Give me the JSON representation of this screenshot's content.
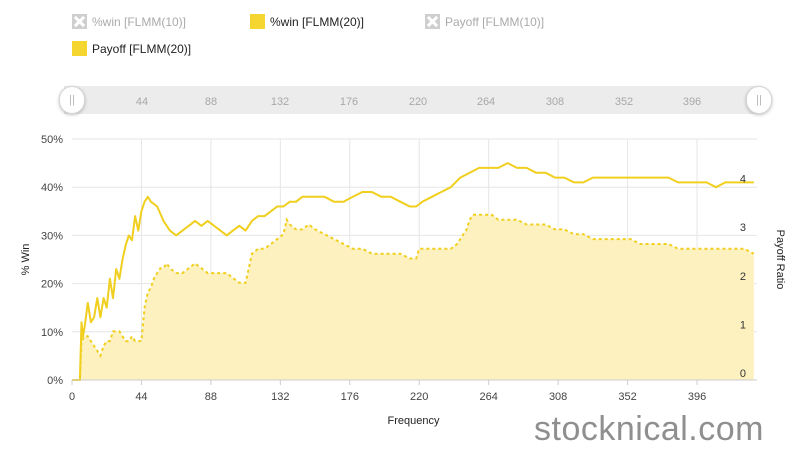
{
  "legend": [
    {
      "label": "%win [FLMM(10)]",
      "state": "off",
      "icon": "x-box-icon"
    },
    {
      "label": "%win [FLMM(20)]",
      "state": "on",
      "icon": "yellow-square-icon"
    },
    {
      "label": "Payoff [FLMM(10)]",
      "state": "off",
      "icon": "x-box-icon"
    },
    {
      "label": "Payoff [FLMM(20)]",
      "state": "on",
      "icon": "yellow-square-icon"
    }
  ],
  "navigator": {
    "ticks": [
      "44",
      "88",
      "132",
      "176",
      "220",
      "264",
      "308",
      "352",
      "396"
    ],
    "handle_left": "||",
    "handle_right": "||"
  },
  "watermark": "stocknical.com",
  "chart_data": {
    "type": "line",
    "xlabel": "Frequency",
    "ylabel_left": "% Win",
    "ylabel_right": "Payoff Ratio",
    "xlim": [
      0,
      434
    ],
    "x_ticks": [
      0,
      44,
      88,
      132,
      176,
      220,
      264,
      308,
      352,
      396
    ],
    "y_left_ticks": [
      "0%",
      "10%",
      "20%",
      "30%",
      "40%",
      "50%"
    ],
    "y_left_range": [
      0,
      50
    ],
    "y_right_ticks": [
      "0",
      "1",
      "2",
      "3",
      "4"
    ],
    "y_right_range": [
      0,
      4.96
    ],
    "grid": true,
    "colors": {
      "line": "#f0cf1f",
      "area_fill": "#fdf1bf",
      "area_line": "#f0cf1f",
      "grid": "#e6e6e6",
      "axis": "#cccccc"
    },
    "series": [
      {
        "name": "%win [FLMM(20)]",
        "kind": "line",
        "axis": "left",
        "points": [
          [
            0,
            0
          ],
          [
            5,
            0
          ],
          [
            6,
            12
          ],
          [
            7,
            9
          ],
          [
            8,
            11
          ],
          [
            10,
            16
          ],
          [
            12,
            12
          ],
          [
            14,
            13
          ],
          [
            16,
            17
          ],
          [
            18,
            13
          ],
          [
            20,
            17
          ],
          [
            22,
            15
          ],
          [
            24,
            21
          ],
          [
            26,
            17
          ],
          [
            28,
            23
          ],
          [
            30,
            21
          ],
          [
            32,
            25
          ],
          [
            34,
            28
          ],
          [
            36,
            30
          ],
          [
            38,
            29
          ],
          [
            40,
            34
          ],
          [
            42,
            31
          ],
          [
            44,
            35
          ],
          [
            46,
            37
          ],
          [
            48,
            38
          ],
          [
            50,
            37
          ],
          [
            54,
            36
          ],
          [
            58,
            33
          ],
          [
            62,
            31
          ],
          [
            66,
            30
          ],
          [
            70,
            31
          ],
          [
            74,
            32
          ],
          [
            78,
            33
          ],
          [
            82,
            32
          ],
          [
            86,
            33
          ],
          [
            90,
            32
          ],
          [
            94,
            31
          ],
          [
            98,
            30
          ],
          [
            102,
            31
          ],
          [
            106,
            32
          ],
          [
            110,
            31
          ],
          [
            114,
            33
          ],
          [
            118,
            34
          ],
          [
            122,
            34
          ],
          [
            126,
            35
          ],
          [
            130,
            36
          ],
          [
            134,
            36
          ],
          [
            138,
            37
          ],
          [
            142,
            37
          ],
          [
            146,
            38
          ],
          [
            150,
            38
          ],
          [
            154,
            38
          ],
          [
            160,
            38
          ],
          [
            166,
            37
          ],
          [
            172,
            37
          ],
          [
            178,
            38
          ],
          [
            184,
            39
          ],
          [
            190,
            39
          ],
          [
            196,
            38
          ],
          [
            202,
            38
          ],
          [
            208,
            37
          ],
          [
            214,
            36
          ],
          [
            218,
            36
          ],
          [
            222,
            37
          ],
          [
            228,
            38
          ],
          [
            234,
            39
          ],
          [
            240,
            40
          ],
          [
            246,
            42
          ],
          [
            252,
            43
          ],
          [
            258,
            44
          ],
          [
            264,
            44
          ],
          [
            270,
            44
          ],
          [
            276,
            45
          ],
          [
            282,
            44
          ],
          [
            288,
            44
          ],
          [
            294,
            43
          ],
          [
            300,
            43
          ],
          [
            306,
            42
          ],
          [
            312,
            42
          ],
          [
            318,
            41
          ],
          [
            324,
            41
          ],
          [
            330,
            42
          ],
          [
            336,
            42
          ],
          [
            342,
            42
          ],
          [
            348,
            42
          ],
          [
            354,
            42
          ],
          [
            360,
            42
          ],
          [
            366,
            42
          ],
          [
            372,
            42
          ],
          [
            378,
            42
          ],
          [
            384,
            41
          ],
          [
            390,
            41
          ],
          [
            396,
            41
          ],
          [
            402,
            41
          ],
          [
            408,
            40
          ],
          [
            414,
            41
          ],
          [
            420,
            41
          ],
          [
            426,
            41
          ],
          [
            432,
            41
          ]
        ]
      },
      {
        "name": "Payoff [FLMM(20)]",
        "kind": "area",
        "axis": "right",
        "points": [
          [
            0,
            0
          ],
          [
            5,
            0
          ],
          [
            6,
            0.8
          ],
          [
            8,
            0.9
          ],
          [
            10,
            0.9
          ],
          [
            12,
            0.8
          ],
          [
            14,
            0.7
          ],
          [
            16,
            0.6
          ],
          [
            18,
            0.5
          ],
          [
            20,
            0.7
          ],
          [
            22,
            0.8
          ],
          [
            24,
            0.8
          ],
          [
            26,
            1.0
          ],
          [
            28,
            1.0
          ],
          [
            30,
            1.0
          ],
          [
            32,
            0.9
          ],
          [
            34,
            0.8
          ],
          [
            36,
            0.8
          ],
          [
            38,
            0.9
          ],
          [
            40,
            0.8
          ],
          [
            42,
            0.8
          ],
          [
            44,
            0.8
          ],
          [
            46,
            1.5
          ],
          [
            48,
            1.8
          ],
          [
            50,
            1.9
          ],
          [
            52,
            2.1
          ],
          [
            54,
            2.2
          ],
          [
            56,
            2.3
          ],
          [
            58,
            2.3
          ],
          [
            60,
            2.4
          ],
          [
            62,
            2.3
          ],
          [
            66,
            2.2
          ],
          [
            70,
            2.2
          ],
          [
            74,
            2.3
          ],
          [
            78,
            2.4
          ],
          [
            82,
            2.3
          ],
          [
            86,
            2.2
          ],
          [
            90,
            2.2
          ],
          [
            94,
            2.2
          ],
          [
            98,
            2.2
          ],
          [
            102,
            2.1
          ],
          [
            106,
            2.0
          ],
          [
            110,
            2.0
          ],
          [
            112,
            2.3
          ],
          [
            114,
            2.6
          ],
          [
            118,
            2.7
          ],
          [
            122,
            2.7
          ],
          [
            126,
            2.8
          ],
          [
            130,
            2.9
          ],
          [
            134,
            3.0
          ],
          [
            136,
            3.3
          ],
          [
            138,
            3.2
          ],
          [
            142,
            3.1
          ],
          [
            146,
            3.1
          ],
          [
            150,
            3.2
          ],
          [
            154,
            3.1
          ],
          [
            160,
            3.0
          ],
          [
            166,
            2.9
          ],
          [
            172,
            2.8
          ],
          [
            178,
            2.7
          ],
          [
            184,
            2.7
          ],
          [
            190,
            2.6
          ],
          [
            196,
            2.6
          ],
          [
            202,
            2.6
          ],
          [
            208,
            2.6
          ],
          [
            214,
            2.5
          ],
          [
            218,
            2.5
          ],
          [
            220,
            2.7
          ],
          [
            224,
            2.7
          ],
          [
            228,
            2.7
          ],
          [
            232,
            2.7
          ],
          [
            236,
            2.7
          ],
          [
            240,
            2.7
          ],
          [
            244,
            2.8
          ],
          [
            248,
            3.0
          ],
          [
            250,
            3.1
          ],
          [
            252,
            3.3
          ],
          [
            254,
            3.4
          ],
          [
            258,
            3.4
          ],
          [
            262,
            3.4
          ],
          [
            266,
            3.4
          ],
          [
            270,
            3.3
          ],
          [
            276,
            3.3
          ],
          [
            282,
            3.3
          ],
          [
            288,
            3.2
          ],
          [
            294,
            3.2
          ],
          [
            300,
            3.2
          ],
          [
            306,
            3.1
          ],
          [
            312,
            3.1
          ],
          [
            318,
            3.0
          ],
          [
            324,
            3.0
          ],
          [
            330,
            2.9
          ],
          [
            336,
            2.9
          ],
          [
            342,
            2.9
          ],
          [
            348,
            2.9
          ],
          [
            354,
            2.9
          ],
          [
            360,
            2.8
          ],
          [
            366,
            2.8
          ],
          [
            372,
            2.8
          ],
          [
            378,
            2.8
          ],
          [
            384,
            2.7
          ],
          [
            390,
            2.7
          ],
          [
            396,
            2.7
          ],
          [
            402,
            2.7
          ],
          [
            408,
            2.7
          ],
          [
            414,
            2.7
          ],
          [
            420,
            2.7
          ],
          [
            426,
            2.7
          ],
          [
            432,
            2.6
          ]
        ]
      }
    ]
  }
}
